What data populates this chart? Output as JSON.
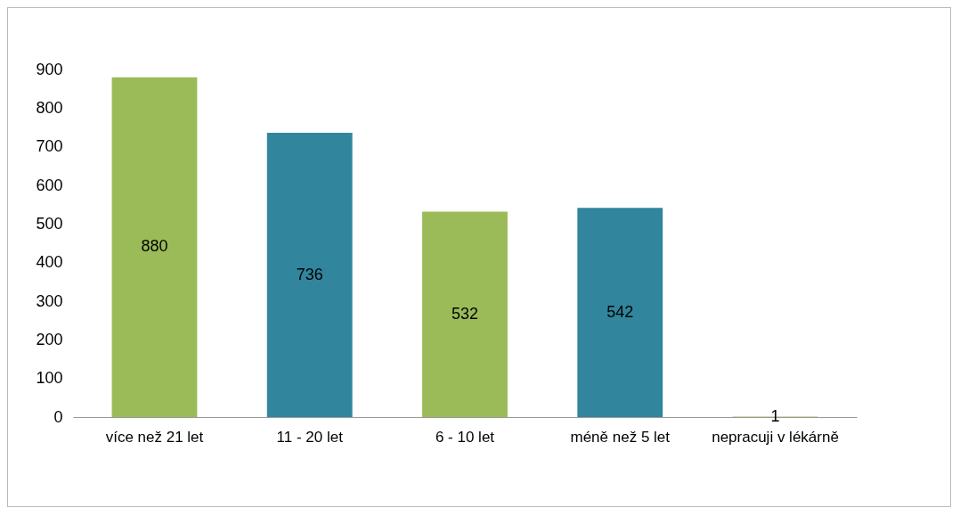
{
  "chart_data": {
    "type": "bar",
    "categories": [
      "více než 21 let",
      "11 - 20 let",
      "6 - 10 let",
      "méně než 5 let",
      "nepracuji v lékárně"
    ],
    "values": [
      880,
      736,
      532,
      542,
      1
    ],
    "colors": [
      "#9bbb59",
      "#31859c",
      "#9bbb59",
      "#31859c",
      "#9bbb59"
    ],
    "ylim": [
      0,
      900
    ],
    "yticks": [
      0,
      100,
      200,
      300,
      400,
      500,
      600,
      700,
      800,
      900
    ],
    "data_labels": true,
    "legend": false
  }
}
